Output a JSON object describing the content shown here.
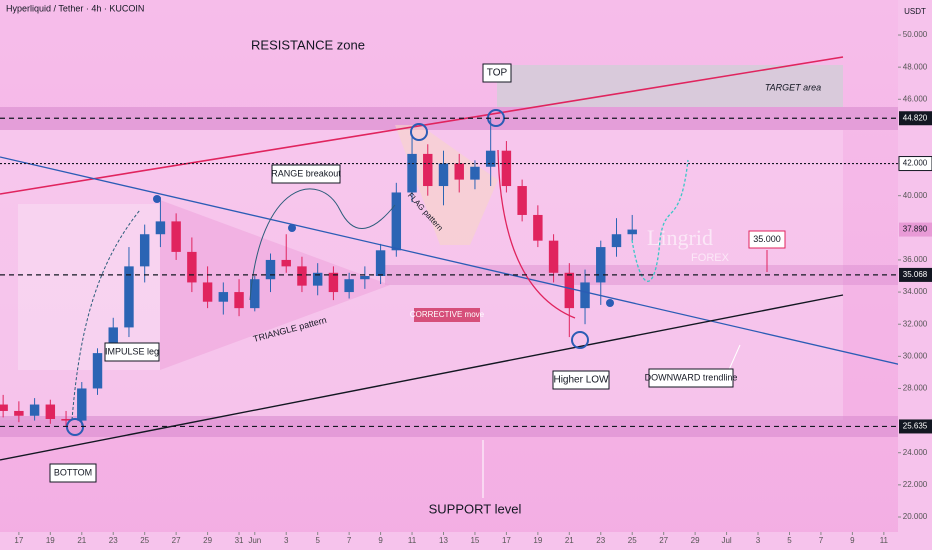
{
  "chart_data": {
    "type": "candlestick",
    "title": "Hyperliquid / Tether · 4h · KUCOIN",
    "y_axis_label": "USDT",
    "x": [
      -1,
      0,
      1,
      2,
      3,
      4,
      5,
      6,
      7,
      8,
      9,
      10,
      11,
      12,
      13,
      14,
      15,
      16,
      17,
      18,
      19,
      20,
      21,
      22,
      23,
      24,
      25,
      26,
      27,
      28,
      29,
      30,
      31,
      32,
      33,
      34,
      35,
      36,
      37,
      38,
      39
    ],
    "open": [
      27.0,
      26.6,
      26.3,
      27.0,
      26.1,
      26.0,
      28.0,
      30.2,
      31.8,
      35.6,
      37.6,
      38.4,
      36.5,
      34.6,
      33.4,
      34.0,
      33.0,
      34.8,
      36.0,
      35.6,
      34.4,
      35.2,
      34.0,
      34.8,
      35.0,
      36.6,
      40.2,
      42.6,
      40.6,
      42.0,
      41.0,
      41.8,
      42.8,
      40.6,
      38.8,
      37.2,
      35.2,
      33.0,
      34.6,
      36.8,
      37.6
    ],
    "high": [
      27.6,
      27.2,
      27.4,
      27.3,
      26.6,
      28.4,
      30.5,
      32.4,
      36.8,
      38.2,
      39.9,
      38.9,
      37.4,
      35.6,
      34.6,
      34.8,
      35.0,
      36.4,
      37.6,
      36.2,
      35.8,
      35.6,
      35.2,
      35.6,
      37.0,
      40.8,
      43.8,
      43.2,
      42.8,
      42.6,
      42.2,
      44.8,
      43.4,
      41.0,
      39.4,
      37.6,
      35.8,
      35.4,
      37.2,
      38.6,
      38.8
    ],
    "low": [
      26.2,
      25.9,
      26.0,
      25.8,
      25.6,
      25.7,
      27.6,
      29.8,
      31.2,
      34.6,
      36.8,
      36.0,
      34.0,
      33.0,
      32.6,
      32.5,
      32.8,
      34.0,
      35.2,
      34.0,
      33.8,
      33.5,
      33.6,
      34.2,
      34.5,
      36.2,
      39.6,
      40.0,
      39.4,
      40.2,
      40.4,
      40.6,
      40.2,
      38.4,
      36.8,
      34.6,
      31.2,
      32.0,
      33.2,
      36.2,
      37.2
    ],
    "close": [
      26.6,
      26.3,
      27.0,
      26.1,
      26.0,
      28.0,
      30.2,
      31.8,
      35.6,
      37.6,
      38.4,
      36.5,
      34.6,
      33.4,
      34.0,
      33.0,
      34.8,
      36.0,
      35.6,
      34.4,
      35.2,
      34.0,
      34.8,
      35.0,
      36.6,
      40.2,
      42.6,
      40.6,
      42.0,
      41.0,
      41.8,
      42.8,
      40.6,
      38.8,
      37.2,
      35.2,
      33.0,
      34.6,
      36.8,
      37.6,
      37.89
    ],
    "up_color": "#2b64b4",
    "down_color": "#e0245e",
    "xlim": [
      -1.2,
      55.9
    ],
    "xticks": [
      {
        "value": 0,
        "label": "17"
      },
      {
        "value": 2,
        "label": "19"
      },
      {
        "value": 4,
        "label": "21"
      },
      {
        "value": 6,
        "label": "23"
      },
      {
        "value": 8,
        "label": "25"
      },
      {
        "value": 10,
        "label": "27"
      },
      {
        "value": 12,
        "label": "29"
      },
      {
        "value": 14,
        "label": "31"
      },
      {
        "value": 15,
        "label": "Jun"
      },
      {
        "value": 17,
        "label": "3"
      },
      {
        "value": 19,
        "label": "5"
      },
      {
        "value": 21,
        "label": "7"
      },
      {
        "value": 23,
        "label": "9"
      },
      {
        "value": 25,
        "label": "11"
      },
      {
        "value": 27,
        "label": "13"
      },
      {
        "value": 29,
        "label": "15"
      },
      {
        "value": 31,
        "label": "17"
      },
      {
        "value": 33,
        "label": "19"
      },
      {
        "value": 35,
        "label": "21"
      },
      {
        "value": 37,
        "label": "23"
      },
      {
        "value": 39,
        "label": "25"
      },
      {
        "value": 41,
        "label": "27"
      },
      {
        "value": 43,
        "label": "29"
      },
      {
        "value": 45,
        "label": "Jul"
      },
      {
        "value": 47,
        "label": "3"
      },
      {
        "value": 49,
        "label": "5"
      },
      {
        "value": 51,
        "label": "7"
      },
      {
        "value": 53,
        "label": "9"
      },
      {
        "value": 55,
        "label": "11"
      }
    ],
    "ylim": [
      19.19,
      52.18
    ],
    "yticks": [
      {
        "value": 20,
        "label": "20.000"
      },
      {
        "value": 22,
        "label": "22.000"
      },
      {
        "value": 24,
        "label": "24.000"
      },
      {
        "value": 28,
        "label": "28.000"
      },
      {
        "value": 30,
        "label": "30.000"
      },
      {
        "value": 32,
        "label": "32.000"
      },
      {
        "value": 34,
        "label": "34.000"
      },
      {
        "value": 36,
        "label": "36.000"
      },
      {
        "value": 40,
        "label": "40.000"
      },
      {
        "value": 46,
        "label": "46.000"
      },
      {
        "value": 48,
        "label": "48.000"
      },
      {
        "value": 50,
        "label": "50.000"
      }
    ],
    "grid": false,
    "price_lines": [
      {
        "value": 44.82,
        "label": "44.820",
        "style": "dashed",
        "label_color": "#131722"
      },
      {
        "value": 42,
        "label": "42.000",
        "style": "dotted",
        "label_color": "#ffffff"
      },
      {
        "value": 35.068,
        "label": "35.068",
        "style": "dashed",
        "label_color": "#131722"
      },
      {
        "value": 25.635,
        "label": "25.635",
        "style": "dashed",
        "label_color": "#131722"
      }
    ],
    "last_price": {
      "value": 37.89,
      "label": "37.890"
    },
    "callout": {
      "value": 35,
      "label": "35.000"
    },
    "annotations": {
      "resistance": "RESISTANCE zone",
      "top": "TOP",
      "target": "TARGET area",
      "range": "RANGE breakout",
      "flag": "FLAG pattern",
      "impulse": "IMPULSE leg",
      "triangle": "TRIANGLE pattern",
      "corrective": "CORRECTIVE move",
      "higher_low": "Higher LOW",
      "downward": "DOWNWARD trendline",
      "bottom": "BOTTOM",
      "support": "SUPPORT level",
      "brand": "Lingrid",
      "brand_sub": "FOREX"
    }
  }
}
